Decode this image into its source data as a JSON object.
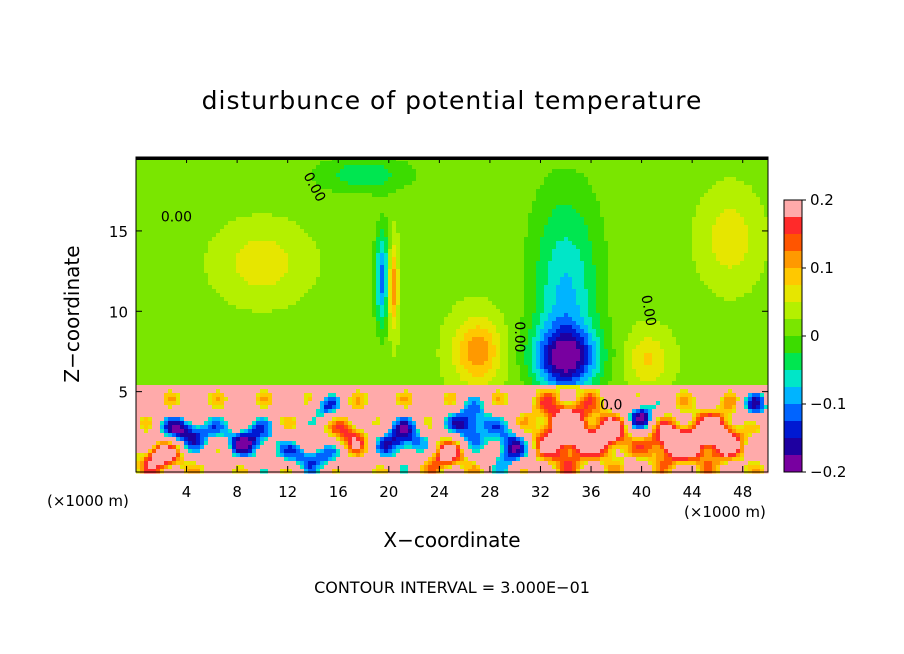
{
  "chart_data": {
    "type": "heatmap",
    "title": "disturbunce of potential temperature",
    "xlabel": "X−coordinate",
    "ylabel": "Z−coordinate",
    "x_unit": "(×1000 m)",
    "y_unit": "(×1000 m)",
    "footer": "CONTOUR INTERVAL = 3.000E−01",
    "xlim": [
      0,
      50
    ],
    "ylim": [
      0,
      19.6
    ],
    "x_ticks": [
      4,
      8,
      12,
      16,
      20,
      24,
      28,
      32,
      36,
      40,
      44,
      48
    ],
    "x_tick_labels": [
      "4",
      "8",
      "12",
      "16",
      "20",
      "24",
      "28",
      "32",
      "36",
      "40",
      "44",
      "48"
    ],
    "y_ticks": [
      5,
      10,
      15
    ],
    "y_tick_labels": [
      "5",
      "10",
      "15"
    ],
    "colorbar": {
      "min": -0.2,
      "max": 0.2,
      "ticks": [
        0.2,
        0.1,
        0,
        -0.1,
        -0.2
      ],
      "tick_labels": [
        "0.2",
        "0.1",
        "0",
        "−0.1",
        "−0.2"
      ],
      "colors": [
        "#ffaaaa",
        "#ff2a2a",
        "#ff5500",
        "#ff9900",
        "#ffc800",
        "#e6e600",
        "#b4f000",
        "#7ae600",
        "#3cdc00",
        "#00e650",
        "#00e6c8",
        "#00b4ff",
        "#0064ff",
        "#0019d2",
        "#1e00a0",
        "#7800a0"
      ]
    },
    "contour_labels": [
      {
        "text": "0.00",
        "x": 3.2,
        "z": 15.6,
        "rot": 0
      },
      {
        "text": "0.00",
        "x": 13.8,
        "z": 17.6,
        "rot": 62
      },
      {
        "text": "0.00",
        "x": 30.0,
        "z": 8.4,
        "rot": 90
      },
      {
        "text": "0.00",
        "x": 40.2,
        "z": 10.0,
        "rot": 80
      },
      {
        "text": "0.0",
        "x": 37.6,
        "z": 3.9,
        "rot": 0
      }
    ],
    "fields": {
      "background": 0.02,
      "lower_layer_top": 5.3,
      "lower_layer_value": 0.2,
      "anomalies": [
        {
          "x": 34,
          "z": 7.0,
          "sx": 2.5,
          "sz": 2.0,
          "value": -0.19
        },
        {
          "x": 34,
          "z": 10.5,
          "sx": 2.6,
          "sz": 4.0,
          "value": -0.09
        },
        {
          "x": 34,
          "z": 15.5,
          "sx": 3.0,
          "sz": 4.0,
          "value": -0.04
        },
        {
          "x": 27,
          "z": 7.5,
          "sx": 1.8,
          "sz": 2.0,
          "value": 0.1
        },
        {
          "x": 40.5,
          "z": 7.0,
          "sx": 1.6,
          "sz": 1.6,
          "value": 0.06
        },
        {
          "x": 19.5,
          "z": 12.0,
          "sx": 0.6,
          "sz": 3.0,
          "value": -0.13
        },
        {
          "x": 20.3,
          "z": 11.5,
          "sx": 0.4,
          "sz": 2.5,
          "value": 0.12
        },
        {
          "x": 10,
          "z": 13.0,
          "sx": 3.0,
          "sz": 2.0,
          "value": 0.05
        },
        {
          "x": 47,
          "z": 14.5,
          "sx": 2.0,
          "sz": 2.5,
          "value": 0.05
        },
        {
          "x": 18,
          "z": 18.5,
          "sx": 4.0,
          "sz": 1.2,
          "value": -0.06
        }
      ],
      "lower_patches": [
        {
          "x": 2,
          "z": 1.0,
          "sx": 1.5,
          "sz": 1.0,
          "value": 0.18
        },
        {
          "x": 4,
          "z": 2.5,
          "sx": 2.2,
          "sz": 1.0,
          "value": -0.18
        },
        {
          "x": 9,
          "z": 2.0,
          "sx": 2.0,
          "sz": 1.2,
          "value": -0.16
        },
        {
          "x": 14,
          "z": 1.0,
          "sx": 2.5,
          "sz": 0.9,
          "value": -0.14
        },
        {
          "x": 15,
          "z": 4.0,
          "sx": 1.2,
          "sz": 0.8,
          "value": -0.12
        },
        {
          "x": 17,
          "z": 2.2,
          "sx": 1.5,
          "sz": 1.2,
          "value": 0.12
        },
        {
          "x": 21,
          "z": 2.0,
          "sx": 2.0,
          "sz": 1.3,
          "value": -0.17
        },
        {
          "x": 24.5,
          "z": 1.0,
          "sx": 1.5,
          "sz": 1.0,
          "value": 0.14
        },
        {
          "x": 26.5,
          "z": 3.0,
          "sx": 1.6,
          "sz": 1.2,
          "value": -0.18
        },
        {
          "x": 29.5,
          "z": 1.5,
          "sx": 1.5,
          "sz": 1.3,
          "value": -0.16
        },
        {
          "x": 34,
          "z": 2.5,
          "sx": 2.3,
          "sz": 2.0,
          "value": 0.2
        },
        {
          "x": 37.5,
          "z": 2.2,
          "sx": 1.5,
          "sz": 1.2,
          "value": 0.15
        },
        {
          "x": 40,
          "z": 3.5,
          "sx": 1.2,
          "sz": 1.0,
          "value": -0.16
        },
        {
          "x": 42.5,
          "z": 1.8,
          "sx": 2.0,
          "sz": 1.2,
          "value": 0.2
        },
        {
          "x": 46,
          "z": 2.2,
          "sx": 2.0,
          "sz": 1.5,
          "value": 0.18
        },
        {
          "x": 49,
          "z": 4.0,
          "sx": 1.2,
          "sz": 1.0,
          "value": -0.12
        }
      ]
    }
  }
}
